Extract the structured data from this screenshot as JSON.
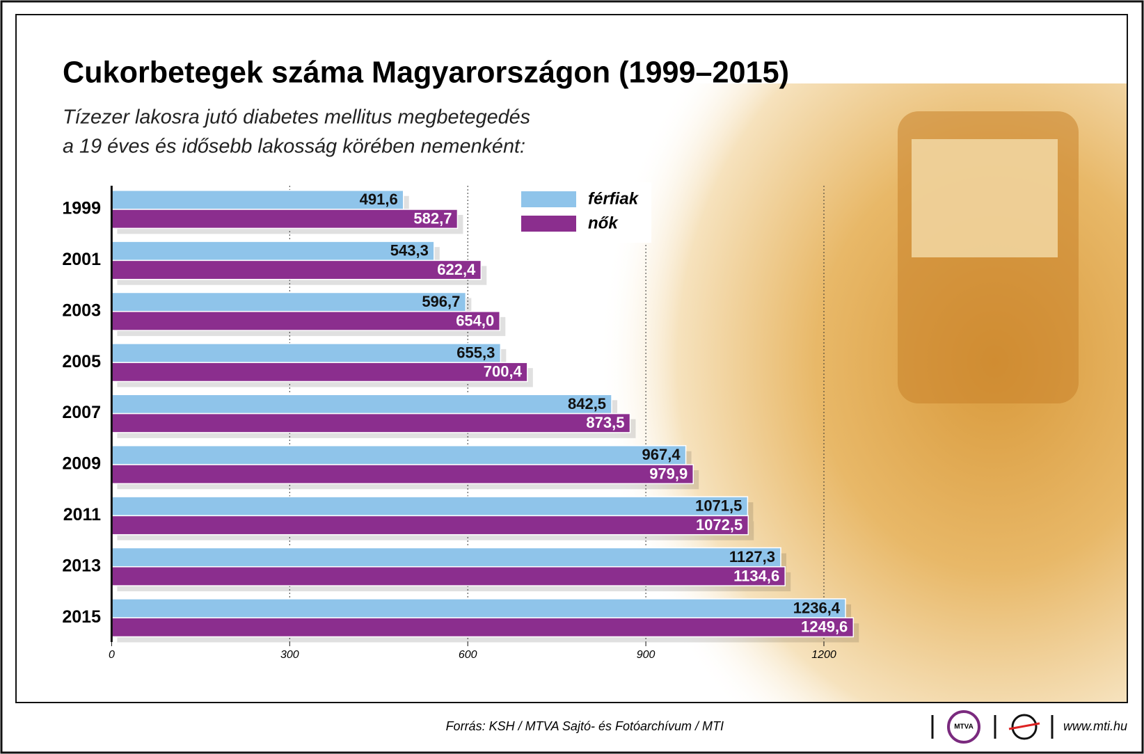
{
  "chart_data": {
    "type": "hbar",
    "title": "Cukorbetegek száma Magyarországon (1999–2015)",
    "subtitle": [
      "Tízezer lakosra jutó diabetes mellitus megbetegedés",
      "a 19 éves és idősebb lakosság körében nemenként:"
    ],
    "categories": [
      "1999",
      "2001",
      "2003",
      "2005",
      "2007",
      "2009",
      "2011",
      "2013",
      "2015"
    ],
    "series": [
      {
        "name": "férfiak",
        "color": "#8fc4ea",
        "values": [
          491.6,
          543.3,
          596.7,
          655.3,
          842.5,
          967.4,
          1071.5,
          1127.3,
          1236.4
        ],
        "value_labels": [
          "491,6",
          "543,3",
          "596,7",
          "655,3",
          "842,5",
          "967,4",
          "1071,5",
          "1127,3",
          "1236,4"
        ]
      },
      {
        "name": "nők",
        "color": "#8b2e8e",
        "values": [
          582.7,
          622.4,
          654.0,
          700.4,
          873.5,
          979.9,
          1072.5,
          1134.6,
          1249.6
        ],
        "value_labels": [
          "582,7",
          "622,4",
          "654,0",
          "700,4",
          "873,5",
          "979,9",
          "1072,5",
          "1134,6",
          "1249,6"
        ]
      }
    ],
    "xlim": [
      0,
      1700
    ],
    "xticks": [
      0,
      300,
      600,
      900,
      1200
    ],
    "grid": true,
    "legend": "top",
    "source": "Forrás: KSH / MTVA Sajtó- és Fotóarchívum / MTI",
    "logo": "MTVA",
    "website": "www.mti.hu"
  }
}
